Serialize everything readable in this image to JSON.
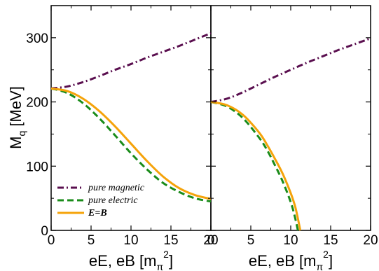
{
  "chart_data": [
    {
      "type": "line",
      "panel": "left",
      "xlabel": "eE, eB [m_π²]",
      "ylabel": "M_q [MeV]",
      "xlim": [
        0,
        20
      ],
      "ylim": [
        0,
        350
      ],
      "x_ticks": [
        "0",
        "5",
        "10",
        "15",
        "20"
      ],
      "y_ticks": [
        "0",
        "100",
        "200",
        "300"
      ],
      "legend_placement": "bottom-left",
      "series": [
        {
          "name": "pure magnetic",
          "color": "#5a0f4f",
          "dash": "dash-dot",
          "x": [
            0,
            2,
            4,
            6,
            8,
            10,
            12,
            14,
            16,
            18,
            20
          ],
          "y": [
            221,
            224,
            231,
            240,
            250,
            259,
            269,
            278,
            287,
            297,
            307
          ]
        },
        {
          "name": "pure electric",
          "color": "#1a8c1a",
          "dash": "dashed",
          "x": [
            0,
            2,
            4,
            6,
            8,
            10,
            12,
            14,
            16,
            18,
            20
          ],
          "y": [
            221,
            214,
            198,
            175,
            148,
            120,
            95,
            74,
            60,
            50,
            45
          ]
        },
        {
          "name": "E=B",
          "color": "#f5a30a",
          "dash": "solid",
          "x": [
            0,
            2,
            4,
            6,
            8,
            10,
            12,
            14,
            16,
            18,
            20
          ],
          "y": [
            221,
            217,
            205,
            186,
            162,
            135,
            108,
            84,
            66,
            55,
            49
          ]
        }
      ]
    },
    {
      "type": "line",
      "panel": "right",
      "xlabel": "eE, eB [m_π²]",
      "xlim": [
        0,
        20
      ],
      "ylim": [
        0,
        350
      ],
      "x_ticks": [
        "0",
        "5",
        "10",
        "15",
        "20"
      ],
      "series": [
        {
          "name": "pure magnetic",
          "color": "#5a0f4f",
          "dash": "dash-dot",
          "x": [
            0,
            2,
            4,
            6,
            8,
            10,
            12,
            14,
            16,
            18,
            20
          ],
          "y": [
            200,
            205,
            215,
            227,
            239,
            250,
            261,
            271,
            281,
            290,
            299
          ]
        },
        {
          "name": "pure electric",
          "color": "#1a8c1a",
          "dash": "dashed",
          "x": [
            0,
            2,
            4,
            6,
            7,
            8,
            9,
            10,
            10.5,
            10.9
          ],
          "y": [
            200,
            193,
            175,
            145,
            126,
            102,
            76,
            44,
            22,
            0
          ]
        },
        {
          "name": "E=B",
          "color": "#f5a30a",
          "dash": "solid",
          "x": [
            0,
            2,
            4,
            6,
            7,
            8,
            9,
            10,
            10.6,
            11.2
          ],
          "y": [
            200,
            195,
            180,
            153,
            134,
            112,
            88,
            58,
            35,
            0
          ]
        }
      ]
    }
  ],
  "legend": {
    "items": [
      {
        "label": "pure magnetic"
      },
      {
        "label": "pure electric"
      },
      {
        "label": "E=B"
      }
    ]
  },
  "axes": {
    "ylabel_main": "M",
    "ylabel_sub": "q",
    "ylabel_unit": " [MeV]",
    "xlabel_main": "eE, eB [m",
    "xlabel_sub": "π",
    "xlabel_sup": "2",
    "xlabel_close": "]"
  }
}
